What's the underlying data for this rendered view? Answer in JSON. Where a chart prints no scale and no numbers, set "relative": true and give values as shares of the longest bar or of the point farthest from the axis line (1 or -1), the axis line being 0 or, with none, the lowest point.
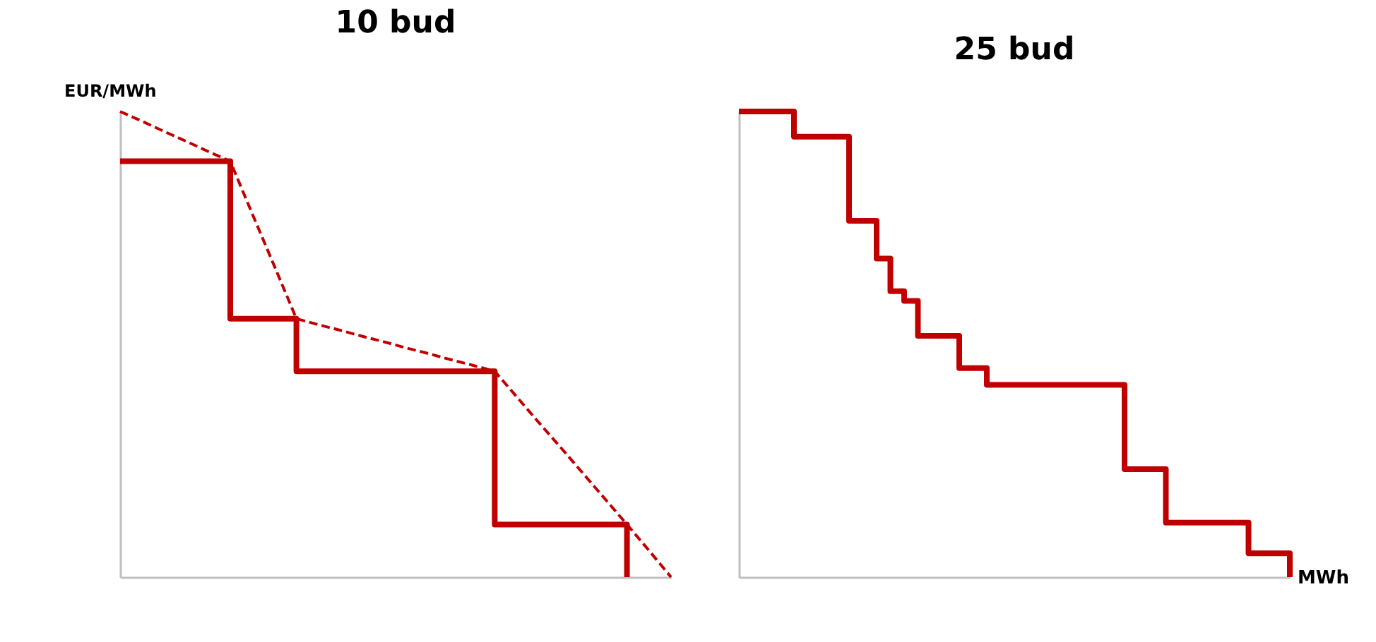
{
  "chart_data": [
    {
      "type": "step",
      "title": "10 bud",
      "ylabel": "EUR/MWh",
      "relative": true,
      "tick_labels": false,
      "grid": false,
      "marker": "none",
      "categories": [
        null,
        null,
        null,
        null,
        null,
        null,
        null,
        null,
        null,
        null,
        null,
        null,
        null,
        null,
        null,
        null,
        null,
        null,
        null,
        null,
        null,
        null,
        null,
        null,
        null,
        null
      ],
      "series": [
        {
          "color": "#c00000",
          "line_style": "solid",
          "values": [
            0.893,
            0.893,
            0.893,
            0.893,
            0.893,
            0.555,
            0.555,
            0.555,
            0.442,
            0.442,
            0.442,
            0.442,
            0.442,
            0.442,
            0.442,
            0.442,
            0.442,
            0.113,
            0.113,
            0.113,
            0.113,
            0.113,
            0.113,
            0,
            null,
            null
          ]
        },
        {
          "type": "line",
          "color": "#c00000",
          "line_style": "dashed",
          "values": [
            1,
            0.979,
            0.957,
            0.936,
            0.914,
            0.893,
            0.78,
            0.668,
            0.555,
            0.542,
            0.53,
            0.517,
            0.505,
            0.492,
            0.48,
            0.467,
            0.455,
            0.442,
            0.387,
            0.332,
            0.278,
            0.223,
            0.168,
            0.113,
            0.057,
            0
          ]
        }
      ]
    },
    {
      "type": "step",
      "title": "25 bud",
      "xlabel": "MWh",
      "relative": true,
      "tick_labels": false,
      "grid": false,
      "marker": "none",
      "categories": [
        null,
        null,
        null,
        null,
        null,
        null,
        null,
        null,
        null,
        null,
        null,
        null,
        null,
        null,
        null,
        null,
        null,
        null,
        null,
        null,
        null,
        null,
        null,
        null,
        null,
        null,
        null,
        null,
        null,
        null,
        null,
        null,
        null,
        null,
        null,
        null,
        null,
        null,
        null,
        null,
        null
      ],
      "series": [
        {
          "color": "#c00000",
          "line_style": "solid",
          "values": [
            1,
            1,
            1,
            1,
            0.946,
            0.946,
            0.946,
            0.946,
            0.765,
            0.765,
            0.684,
            0.614,
            0.593,
            0.518,
            0.518,
            0.518,
            0.449,
            0.449,
            0.413,
            0.413,
            0.413,
            0.413,
            0.413,
            0.413,
            0.413,
            0.413,
            0.413,
            0.413,
            0.232,
            0.232,
            0.232,
            0.117,
            0.117,
            0.117,
            0.117,
            0.117,
            0.117,
            0.051,
            0.051,
            0.051,
            0
          ]
        }
      ]
    }
  ]
}
